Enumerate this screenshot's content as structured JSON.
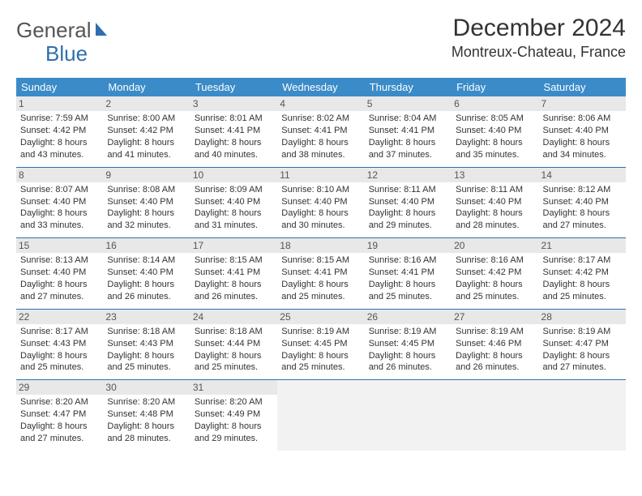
{
  "logo": {
    "text1": "General",
    "text2": "Blue"
  },
  "title": "December 2024",
  "location": "Montreux-Chateau, France",
  "colors": {
    "header_bg": "#3b8bc8",
    "header_text": "#ffffff",
    "row_border": "#2f6fae",
    "shade_bg": "#e8e8e8",
    "page_bg": "#ffffff",
    "text": "#333333"
  },
  "weekdays": [
    "Sunday",
    "Monday",
    "Tuesday",
    "Wednesday",
    "Thursday",
    "Friday",
    "Saturday"
  ],
  "days": [
    {
      "n": "1",
      "sr": "Sunrise: 7:59 AM",
      "ss": "Sunset: 4:42 PM",
      "dl1": "Daylight: 8 hours",
      "dl2": "and 43 minutes."
    },
    {
      "n": "2",
      "sr": "Sunrise: 8:00 AM",
      "ss": "Sunset: 4:42 PM",
      "dl1": "Daylight: 8 hours",
      "dl2": "and 41 minutes."
    },
    {
      "n": "3",
      "sr": "Sunrise: 8:01 AM",
      "ss": "Sunset: 4:41 PM",
      "dl1": "Daylight: 8 hours",
      "dl2": "and 40 minutes."
    },
    {
      "n": "4",
      "sr": "Sunrise: 8:02 AM",
      "ss": "Sunset: 4:41 PM",
      "dl1": "Daylight: 8 hours",
      "dl2": "and 38 minutes."
    },
    {
      "n": "5",
      "sr": "Sunrise: 8:04 AM",
      "ss": "Sunset: 4:41 PM",
      "dl1": "Daylight: 8 hours",
      "dl2": "and 37 minutes."
    },
    {
      "n": "6",
      "sr": "Sunrise: 8:05 AM",
      "ss": "Sunset: 4:40 PM",
      "dl1": "Daylight: 8 hours",
      "dl2": "and 35 minutes."
    },
    {
      "n": "7",
      "sr": "Sunrise: 8:06 AM",
      "ss": "Sunset: 4:40 PM",
      "dl1": "Daylight: 8 hours",
      "dl2": "and 34 minutes."
    },
    {
      "n": "8",
      "sr": "Sunrise: 8:07 AM",
      "ss": "Sunset: 4:40 PM",
      "dl1": "Daylight: 8 hours",
      "dl2": "and 33 minutes."
    },
    {
      "n": "9",
      "sr": "Sunrise: 8:08 AM",
      "ss": "Sunset: 4:40 PM",
      "dl1": "Daylight: 8 hours",
      "dl2": "and 32 minutes."
    },
    {
      "n": "10",
      "sr": "Sunrise: 8:09 AM",
      "ss": "Sunset: 4:40 PM",
      "dl1": "Daylight: 8 hours",
      "dl2": "and 31 minutes."
    },
    {
      "n": "11",
      "sr": "Sunrise: 8:10 AM",
      "ss": "Sunset: 4:40 PM",
      "dl1": "Daylight: 8 hours",
      "dl2": "and 30 minutes."
    },
    {
      "n": "12",
      "sr": "Sunrise: 8:11 AM",
      "ss": "Sunset: 4:40 PM",
      "dl1": "Daylight: 8 hours",
      "dl2": "and 29 minutes."
    },
    {
      "n": "13",
      "sr": "Sunrise: 8:11 AM",
      "ss": "Sunset: 4:40 PM",
      "dl1": "Daylight: 8 hours",
      "dl2": "and 28 minutes."
    },
    {
      "n": "14",
      "sr": "Sunrise: 8:12 AM",
      "ss": "Sunset: 4:40 PM",
      "dl1": "Daylight: 8 hours",
      "dl2": "and 27 minutes."
    },
    {
      "n": "15",
      "sr": "Sunrise: 8:13 AM",
      "ss": "Sunset: 4:40 PM",
      "dl1": "Daylight: 8 hours",
      "dl2": "and 27 minutes."
    },
    {
      "n": "16",
      "sr": "Sunrise: 8:14 AM",
      "ss": "Sunset: 4:40 PM",
      "dl1": "Daylight: 8 hours",
      "dl2": "and 26 minutes."
    },
    {
      "n": "17",
      "sr": "Sunrise: 8:15 AM",
      "ss": "Sunset: 4:41 PM",
      "dl1": "Daylight: 8 hours",
      "dl2": "and 26 minutes."
    },
    {
      "n": "18",
      "sr": "Sunrise: 8:15 AM",
      "ss": "Sunset: 4:41 PM",
      "dl1": "Daylight: 8 hours",
      "dl2": "and 25 minutes."
    },
    {
      "n": "19",
      "sr": "Sunrise: 8:16 AM",
      "ss": "Sunset: 4:41 PM",
      "dl1": "Daylight: 8 hours",
      "dl2": "and 25 minutes."
    },
    {
      "n": "20",
      "sr": "Sunrise: 8:16 AM",
      "ss": "Sunset: 4:42 PM",
      "dl1": "Daylight: 8 hours",
      "dl2": "and 25 minutes."
    },
    {
      "n": "21",
      "sr": "Sunrise: 8:17 AM",
      "ss": "Sunset: 4:42 PM",
      "dl1": "Daylight: 8 hours",
      "dl2": "and 25 minutes."
    },
    {
      "n": "22",
      "sr": "Sunrise: 8:17 AM",
      "ss": "Sunset: 4:43 PM",
      "dl1": "Daylight: 8 hours",
      "dl2": "and 25 minutes."
    },
    {
      "n": "23",
      "sr": "Sunrise: 8:18 AM",
      "ss": "Sunset: 4:43 PM",
      "dl1": "Daylight: 8 hours",
      "dl2": "and 25 minutes."
    },
    {
      "n": "24",
      "sr": "Sunrise: 8:18 AM",
      "ss": "Sunset: 4:44 PM",
      "dl1": "Daylight: 8 hours",
      "dl2": "and 25 minutes."
    },
    {
      "n": "25",
      "sr": "Sunrise: 8:19 AM",
      "ss": "Sunset: 4:45 PM",
      "dl1": "Daylight: 8 hours",
      "dl2": "and 25 minutes."
    },
    {
      "n": "26",
      "sr": "Sunrise: 8:19 AM",
      "ss": "Sunset: 4:45 PM",
      "dl1": "Daylight: 8 hours",
      "dl2": "and 26 minutes."
    },
    {
      "n": "27",
      "sr": "Sunrise: 8:19 AM",
      "ss": "Sunset: 4:46 PM",
      "dl1": "Daylight: 8 hours",
      "dl2": "and 26 minutes."
    },
    {
      "n": "28",
      "sr": "Sunrise: 8:19 AM",
      "ss": "Sunset: 4:47 PM",
      "dl1": "Daylight: 8 hours",
      "dl2": "and 27 minutes."
    },
    {
      "n": "29",
      "sr": "Sunrise: 8:20 AM",
      "ss": "Sunset: 4:47 PM",
      "dl1": "Daylight: 8 hours",
      "dl2": "and 27 minutes."
    },
    {
      "n": "30",
      "sr": "Sunrise: 8:20 AM",
      "ss": "Sunset: 4:48 PM",
      "dl1": "Daylight: 8 hours",
      "dl2": "and 28 minutes."
    },
    {
      "n": "31",
      "sr": "Sunrise: 8:20 AM",
      "ss": "Sunset: 4:49 PM",
      "dl1": "Daylight: 8 hours",
      "dl2": "and 29 minutes."
    }
  ]
}
